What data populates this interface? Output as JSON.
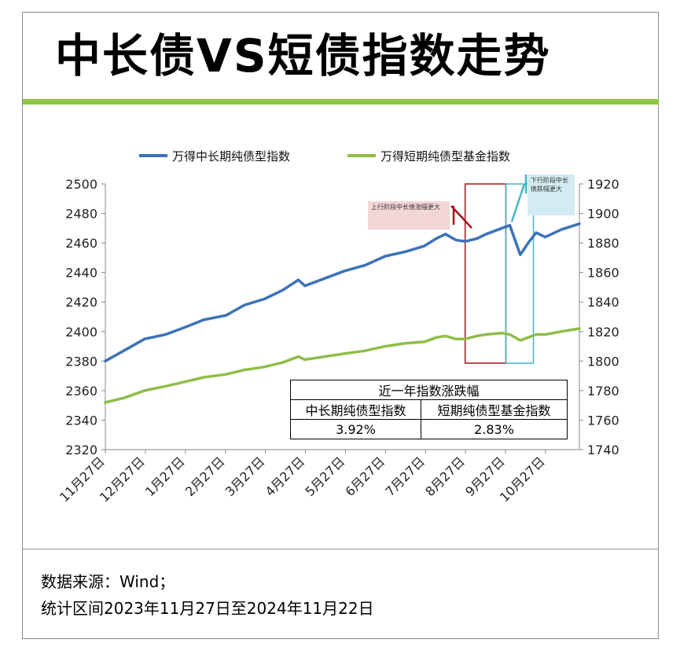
{
  "title": "中长债VS短债指数走势",
  "footer": {
    "line1": "数据来源：Wind；",
    "line2": "统计区间2023年11月27日至2024年11月22日"
  },
  "colors": {
    "title_rule": "#8dc63f",
    "series_long": "#3d72b8",
    "series_short": "#8fbd48",
    "box_up": "#a3161a",
    "box_down": "#44b5c7",
    "note_up_bg": "#f3d6d6",
    "note_down_bg": "#d3ecf1"
  },
  "annotations": {
    "up": "上行阶段中长债涨幅更大",
    "down": "下行阶段中长债跌幅更大"
  },
  "stats_table": {
    "title": "近一年指数涨跌幅",
    "headers": [
      "中长期纯债型指数",
      "短期纯债型基金指数"
    ],
    "values": [
      "3.92%",
      "2.83%"
    ]
  },
  "chart_data": {
    "type": "line",
    "title": "",
    "xlabel": "",
    "ylabel": "",
    "x_tick_labels": [
      "11月27日",
      "12月27日",
      "1月27日",
      "2月27日",
      "3月27日",
      "4月27日",
      "5月27日",
      "6月27日",
      "7月27日",
      "8月27日",
      "9月27日",
      "10月27日"
    ],
    "y_left": {
      "min": 2320,
      "max": 2500,
      "ticks": [
        2320,
        2340,
        2360,
        2380,
        2400,
        2420,
        2440,
        2460,
        2480,
        2500
      ]
    },
    "y_right": {
      "min": 1740,
      "max": 1920,
      "ticks": [
        1740,
        1760,
        1780,
        1800,
        1820,
        1840,
        1860,
        1880,
        1900,
        1920
      ]
    },
    "legend_position": "top",
    "grid": false,
    "series": [
      {
        "name": "万得中长期纯债型指数",
        "axis": "left",
        "x": [
          "2023-11-27",
          "2023-12-11",
          "2023-12-27",
          "2024-01-12",
          "2024-01-27",
          "2024-02-10",
          "2024-02-27",
          "2024-03-12",
          "2024-03-27",
          "2024-04-10",
          "2024-04-22",
          "2024-04-27",
          "2024-05-12",
          "2024-05-27",
          "2024-06-12",
          "2024-06-27",
          "2024-07-12",
          "2024-07-27",
          "2024-08-05",
          "2024-08-12",
          "2024-08-20",
          "2024-08-27",
          "2024-09-05",
          "2024-09-12",
          "2024-09-24",
          "2024-09-30",
          "2024-10-08",
          "2024-10-14",
          "2024-10-20",
          "2024-10-27",
          "2024-11-08",
          "2024-11-22"
        ],
        "values": [
          2380,
          2387,
          2395,
          2398,
          2403,
          2408,
          2411,
          2418,
          2422,
          2428,
          2435,
          2431,
          2436,
          2441,
          2445,
          2451,
          2454,
          2458,
          2463,
          2466,
          2462,
          2461,
          2463,
          2466,
          2470,
          2472,
          2452,
          2460,
          2467,
          2464,
          2469,
          2473
        ]
      },
      {
        "name": "万得短期纯债型基金指数",
        "axis": "right",
        "x": [
          "2023-11-27",
          "2023-12-11",
          "2023-12-27",
          "2024-01-12",
          "2024-01-27",
          "2024-02-10",
          "2024-02-27",
          "2024-03-12",
          "2024-03-27",
          "2024-04-10",
          "2024-04-22",
          "2024-04-27",
          "2024-05-12",
          "2024-05-27",
          "2024-06-12",
          "2024-06-27",
          "2024-07-12",
          "2024-07-27",
          "2024-08-05",
          "2024-08-12",
          "2024-08-20",
          "2024-08-27",
          "2024-09-05",
          "2024-09-12",
          "2024-09-24",
          "2024-09-30",
          "2024-10-08",
          "2024-10-14",
          "2024-10-20",
          "2024-10-27",
          "2024-11-08",
          "2024-11-22"
        ],
        "values": [
          1772,
          1775,
          1780,
          1783,
          1786,
          1789,
          1791,
          1794,
          1796,
          1799,
          1803,
          1801,
          1803,
          1805,
          1807,
          1810,
          1812,
          1813,
          1816,
          1817,
          1815,
          1815,
          1817,
          1818,
          1819,
          1818,
          1814,
          1816,
          1818,
          1818,
          1820,
          1822
        ]
      }
    ],
    "highlight_ranges": [
      {
        "label": "上行阶段中长债涨幅更大",
        "from": "2024-08-27",
        "to": "2024-09-27",
        "color": "#a3161a"
      },
      {
        "label": "下行阶段中长债跌幅更大",
        "from": "2024-09-27",
        "to": "2024-10-18",
        "color": "#44b5c7"
      }
    ]
  }
}
